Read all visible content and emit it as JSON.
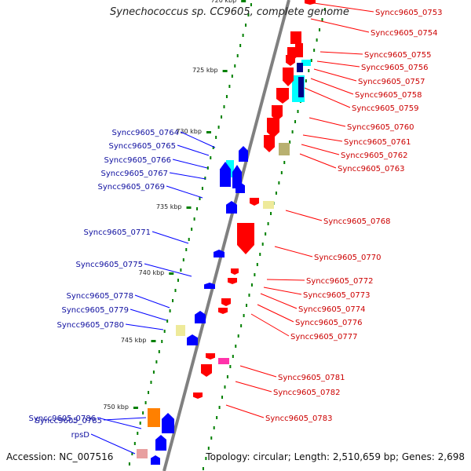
{
  "header": {
    "title": "Synechococcus sp. CC9605, complete genome"
  },
  "footer": {
    "accession": "Accession: NC_007516",
    "summary": "Topology: circular; Length: 2,510,659 bp; Genes: 2,698"
  },
  "colors": {
    "backbone": "#808080",
    "forward_gene": "#ff0000",
    "reverse_gene": "#0000ff",
    "forward_label": "#cc0000",
    "reverse_label": "#1010a0",
    "gc_tick": "#008000",
    "cyan_feature": "#00ffff",
    "navy_feature": "#000088",
    "khaki_feature": "#b8b070",
    "pale_yellow_feature": "#eeea9a",
    "orange_feature": "#ff8000",
    "pink_feature": "#e8a0a0",
    "magenta_feature": "#ff33aa"
  },
  "scale_labels": [
    "720 kbp",
    "725 kbp",
    "730 kbp",
    "735 kbp",
    "740 kbp",
    "745 kbp",
    "750 kbp"
  ],
  "forward_genes": [
    "Syncc9605_0753",
    "Syncc9605_0754",
    "Syncc9605_0755",
    "Syncc9605_0756",
    "Syncc9605_0757",
    "Syncc9605_0758",
    "Syncc9605_0759",
    "Syncc9605_0760",
    "Syncc9605_0761",
    "Syncc9605_0762",
    "Syncc9605_0763",
    "Syncc9605_0768",
    "Syncc9605_0770",
    "Syncc9605_0772",
    "Syncc9605_0773",
    "Syncc9605_0774",
    "Syncc9605_0776",
    "Syncc9605_0777",
    "Syncc9605_0781",
    "Syncc9605_0782",
    "Syncc9605_0783"
  ],
  "reverse_genes": [
    "Syncc9605_0764",
    "Syncc9605_0765",
    "Syncc9605_0766",
    "Syncc9605_0767",
    "Syncc9605_0769",
    "Syncc9605_0771",
    "Syncc9605_0775",
    "Syncc9605_0778",
    "Syncc9605_0779",
    "Syncc9605_0780",
    "Syncc9605_0785",
    "Syncc9605_0786",
    "rpsD"
  ]
}
